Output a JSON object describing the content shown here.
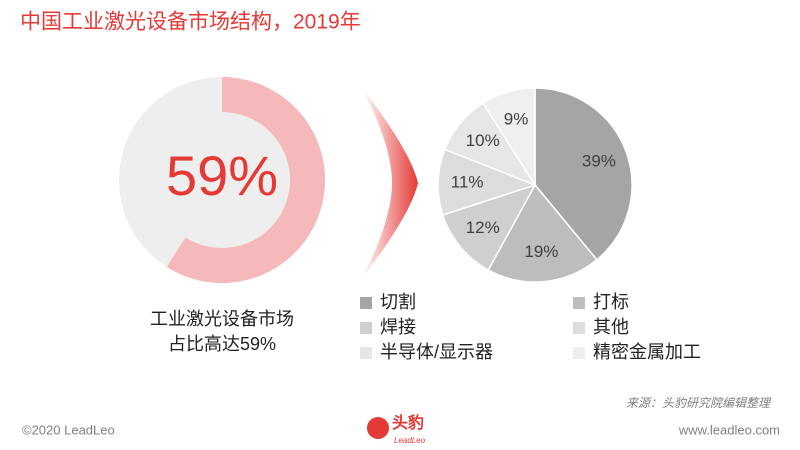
{
  "page": {
    "title": "中国工业激光设备市场结构，2019年",
    "source": "来源：头豹研究院编辑整理",
    "copyright": "©2020 LeadLeo",
    "website": "www.leadleo.com",
    "logo": {
      "name": "头豹",
      "sub": "LeadLeo"
    }
  },
  "chart_data": [
    {
      "type": "donut",
      "values": [
        59
      ],
      "value_labels": [
        "59%"
      ],
      "color": "#f5b8bb",
      "track_color": "#eeeeee",
      "label_color": "#e53935",
      "caption": [
        "工业激光设备市场",
        "占比高达59%"
      ]
    },
    {
      "type": "pie",
      "categories": [
        "切割",
        "打标",
        "焊接",
        "其他",
        "半导体/显示器",
        "精密金属加工"
      ],
      "values": [
        39,
        19,
        12,
        11,
        10,
        9
      ],
      "value_labels": [
        "39%",
        "19%",
        "12%",
        "11%",
        "10%",
        "9%"
      ],
      "colors": [
        "#a5a5a5",
        "#bdbdbd",
        "#cfcfcf",
        "#dcdcdc",
        "#e6e6e6",
        "#efefef"
      ]
    }
  ]
}
